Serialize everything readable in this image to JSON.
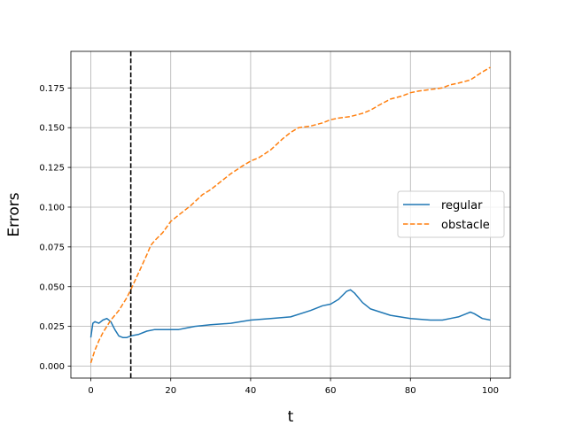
{
  "chart_data": {
    "type": "line",
    "title": "",
    "xlabel": "t",
    "ylabel": "Errors",
    "xlim": [
      -5,
      105
    ],
    "ylim": [
      -0.0075,
      0.198
    ],
    "x_ticks": [
      0,
      20,
      40,
      60,
      80,
      100
    ],
    "x_tick_labels": [
      "0",
      "20",
      "40",
      "60",
      "80",
      "100"
    ],
    "y_ticks": [
      0.0,
      0.025,
      0.05,
      0.075,
      0.1,
      0.125,
      0.15,
      0.175
    ],
    "y_tick_labels": [
      "0.000",
      "0.025",
      "0.050",
      "0.075",
      "0.100",
      "0.125",
      "0.150",
      "0.175"
    ],
    "grid": true,
    "legend_position": "center-right",
    "vline": {
      "x": 10,
      "style": "dashed",
      "color": "#000000"
    },
    "series": [
      {
        "name": "regular",
        "color": "#1f77b4",
        "style": "solid",
        "x": [
          0,
          0.5,
          1,
          2,
          3,
          4,
          5,
          6,
          7,
          8,
          9,
          10,
          12,
          14,
          16,
          18,
          20,
          22,
          24,
          26,
          30,
          35,
          40,
          45,
          50,
          55,
          58,
          60,
          62,
          64,
          65,
          66,
          68,
          70,
          75,
          80,
          85,
          88,
          90,
          92,
          94,
          95,
          96,
          98,
          100
        ],
        "values": [
          0.018,
          0.027,
          0.028,
          0.027,
          0.029,
          0.03,
          0.028,
          0.023,
          0.019,
          0.018,
          0.018,
          0.019,
          0.02,
          0.022,
          0.023,
          0.023,
          0.023,
          0.023,
          0.024,
          0.025,
          0.026,
          0.027,
          0.029,
          0.03,
          0.031,
          0.035,
          0.038,
          0.039,
          0.042,
          0.047,
          0.048,
          0.046,
          0.04,
          0.036,
          0.032,
          0.03,
          0.029,
          0.029,
          0.03,
          0.031,
          0.033,
          0.034,
          0.033,
          0.03,
          0.029
        ]
      },
      {
        "name": "obstacle",
        "color": "#ff7f0e",
        "style": "dashed",
        "x": [
          0,
          1,
          2,
          3,
          4,
          5,
          6,
          7,
          8,
          9,
          10,
          12,
          14,
          15,
          16,
          18,
          20,
          22,
          25,
          28,
          30,
          32,
          35,
          38,
          40,
          42,
          45,
          48,
          50,
          52,
          55,
          58,
          60,
          62,
          65,
          68,
          70,
          72,
          75,
          78,
          80,
          82,
          85,
          88,
          90,
          92,
          95,
          98,
          100
        ],
        "values": [
          0.002,
          0.01,
          0.016,
          0.021,
          0.025,
          0.029,
          0.032,
          0.035,
          0.039,
          0.043,
          0.048,
          0.059,
          0.07,
          0.076,
          0.079,
          0.084,
          0.091,
          0.095,
          0.101,
          0.108,
          0.111,
          0.115,
          0.121,
          0.126,
          0.129,
          0.131,
          0.136,
          0.143,
          0.147,
          0.15,
          0.151,
          0.153,
          0.155,
          0.156,
          0.157,
          0.159,
          0.161,
          0.164,
          0.168,
          0.17,
          0.172,
          0.173,
          0.174,
          0.175,
          0.177,
          0.178,
          0.18,
          0.185,
          0.188
        ]
      }
    ]
  }
}
